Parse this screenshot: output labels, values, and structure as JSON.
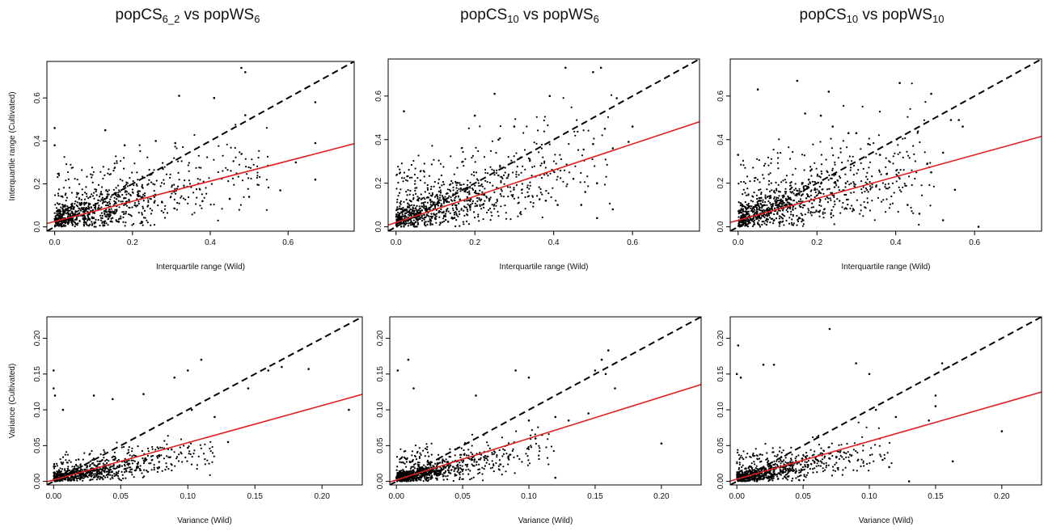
{
  "titles": [
    {
      "pre": "popCS",
      "sub": "6_2",
      "mid": " vs popWS",
      "sub2": "6"
    },
    {
      "pre": "popCS",
      "sub": "10",
      "mid": " vs popWS",
      "sub2": "6"
    },
    {
      "pre": "popCS",
      "sub": "10",
      "mid": " vs popWS",
      "sub2": "10"
    }
  ],
  "colors": {
    "points": "#000000",
    "regression": "#e02020",
    "identity": "#000000"
  },
  "chart_data": [
    {
      "type": "scatter",
      "title": "popCS6_2 vs popWS6",
      "xlabel": "Interquartile range (Wild)",
      "ylabel": "Interquartile range (Cultivated)",
      "xlim": [
        -0.02,
        0.77
      ],
      "ylim": [
        -0.02,
        0.77
      ],
      "xticks": [
        "0.0",
        "0.2",
        "0.4",
        "0.6"
      ],
      "yticks": [
        "0.0",
        "0.2",
        "0.4",
        "0.6"
      ],
      "identity_line": true,
      "regression": {
        "intercept": 0.025,
        "slope": 0.47
      },
      "cloud": {
        "seed": 11,
        "n": 900,
        "xmax": 0.55,
        "decay": 6,
        "spread": 0.09,
        "slope": 0.42,
        "intercept": 0.03
      },
      "points": [
        [
          0.0,
          0.46
        ],
        [
          0.0,
          0.38
        ],
        [
          0.48,
          0.74
        ],
        [
          0.49,
          0.72
        ],
        [
          0.32,
          0.61
        ],
        [
          0.41,
          0.6
        ],
        [
          0.67,
          0.58
        ],
        [
          0.49,
          0.52
        ],
        [
          0.58,
          0.17
        ],
        [
          0.62,
          0.3
        ],
        [
          0.67,
          0.39
        ],
        [
          0.67,
          0.22
        ],
        [
          0.13,
          0.45
        ],
        [
          0.18,
          0.38
        ],
        [
          0.26,
          0.4
        ],
        [
          0.31,
          0.39
        ],
        [
          0.5,
          0.14
        ],
        [
          0.45,
          0.13
        ],
        [
          0.38,
          0.12
        ]
      ]
    },
    {
      "type": "scatter",
      "title": "popCS10 vs popWS6",
      "xlabel": "Interquartile range (Wild)",
      "ylabel": "",
      "xlim": [
        -0.02,
        0.77
      ],
      "ylim": [
        -0.02,
        0.77
      ],
      "xticks": [
        "0.0",
        "0.2",
        "0.4",
        "0.6"
      ],
      "yticks": [
        "0.0",
        "0.2",
        "0.4",
        "0.6"
      ],
      "identity_line": true,
      "regression": {
        "intercept": 0.02,
        "slope": 0.6
      },
      "cloud": {
        "seed": 23,
        "n": 950,
        "xmax": 0.55,
        "decay": 6,
        "spread": 0.1,
        "slope": 0.55,
        "intercept": 0.03
      },
      "points": [
        [
          0.02,
          0.53
        ],
        [
          0.43,
          0.73
        ],
        [
          0.5,
          0.71
        ],
        [
          0.52,
          0.73
        ],
        [
          0.25,
          0.61
        ],
        [
          0.39,
          0.6
        ],
        [
          0.56,
          0.59
        ],
        [
          0.6,
          0.46
        ],
        [
          0.59,
          0.39
        ],
        [
          0.53,
          0.45
        ],
        [
          0.55,
          0.36
        ],
        [
          0.5,
          0.38
        ],
        [
          0.51,
          0.2
        ],
        [
          0.45,
          0.22
        ],
        [
          0.48,
          0.16
        ],
        [
          0.47,
          0.1
        ],
        [
          0.55,
          0.08
        ],
        [
          0.51,
          0.04
        ],
        [
          0.41,
          0.1
        ],
        [
          0.38,
          0.12
        ],
        [
          0.3,
          0.46
        ],
        [
          0.2,
          0.51
        ],
        [
          0.26,
          0.4
        ]
      ]
    },
    {
      "type": "scatter",
      "title": "popCS10 vs popWS10",
      "xlabel": "Interquartile range (Wild)",
      "ylabel": "",
      "xlim": [
        -0.02,
        0.77
      ],
      "ylim": [
        -0.02,
        0.77
      ],
      "xticks": [
        "0.0",
        "0.2",
        "0.4",
        "0.6"
      ],
      "yticks": [
        "0.0",
        "0.2",
        "0.4",
        "0.6"
      ],
      "identity_line": true,
      "regression": {
        "intercept": 0.03,
        "slope": 0.5
      },
      "cloud": {
        "seed": 37,
        "n": 950,
        "xmax": 0.5,
        "decay": 6,
        "spread": 0.1,
        "slope": 0.5,
        "intercept": 0.04
      },
      "points": [
        [
          0.0,
          0.33
        ],
        [
          0.05,
          0.63
        ],
        [
          0.15,
          0.67
        ],
        [
          0.23,
          0.62
        ],
        [
          0.41,
          0.66
        ],
        [
          0.49,
          0.61
        ],
        [
          0.21,
          0.51
        ],
        [
          0.28,
          0.43
        ],
        [
          0.3,
          0.43
        ],
        [
          0.33,
          0.38
        ],
        [
          0.36,
          0.33
        ],
        [
          0.54,
          0.49
        ],
        [
          0.56,
          0.49
        ],
        [
          0.57,
          0.46
        ],
        [
          0.52,
          0.34
        ],
        [
          0.48,
          0.29
        ],
        [
          0.49,
          0.25
        ],
        [
          0.55,
          0.17
        ],
        [
          0.61,
          0.0
        ],
        [
          0.52,
          0.03
        ],
        [
          0.46,
          0.06
        ],
        [
          0.43,
          0.1
        ],
        [
          0.17,
          0.52
        ],
        [
          0.24,
          0.46
        ]
      ]
    },
    {
      "type": "scatter",
      "title": "",
      "xlabel": "Variance (Wild)",
      "ylabel": "Variance (Cultivated)",
      "xlim": [
        -0.005,
        0.23
      ],
      "ylim": [
        -0.005,
        0.23
      ],
      "xticks": [
        "0.00",
        "0.05",
        "0.10",
        "0.15",
        "0.20"
      ],
      "yticks": [
        "0.00",
        "0.05",
        "0.10",
        "0.15",
        "0.20"
      ],
      "identity_line": true,
      "regression": {
        "intercept": 0.002,
        "slope": 0.52
      },
      "cloud": {
        "seed": 51,
        "n": 800,
        "xmax": 0.12,
        "decay": 30,
        "spread": 0.012,
        "slope": 0.3,
        "intercept": 0.004
      },
      "points": [
        [
          0.0,
          0.155
        ],
        [
          0.0,
          0.13
        ],
        [
          0.001,
          0.12
        ],
        [
          0.007,
          0.1
        ],
        [
          0.03,
          0.12
        ],
        [
          0.044,
          0.115
        ],
        [
          0.067,
          0.122
        ],
        [
          0.09,
          0.145
        ],
        [
          0.1,
          0.155
        ],
        [
          0.11,
          0.17
        ],
        [
          0.16,
          0.155
        ],
        [
          0.17,
          0.16
        ],
        [
          0.19,
          0.157
        ],
        [
          0.22,
          0.1
        ],
        [
          0.145,
          0.13
        ],
        [
          0.13,
          0.055
        ],
        [
          0.12,
          0.09
        ],
        [
          0.103,
          0.1
        ],
        [
          0.1,
          0.047
        ],
        [
          0.085,
          0.085
        ]
      ]
    },
    {
      "type": "scatter",
      "title": "",
      "xlabel": "Variance (Wild)",
      "ylabel": "",
      "xlim": [
        -0.005,
        0.23
      ],
      "ylim": [
        -0.005,
        0.23
      ],
      "xticks": [
        "0.00",
        "0.05",
        "0.10",
        "0.15",
        "0.20"
      ],
      "yticks": [
        "0.00",
        "0.05",
        "0.10",
        "0.15",
        "0.20"
      ],
      "identity_line": true,
      "regression": {
        "intercept": 0.002,
        "slope": 0.58
      },
      "cloud": {
        "seed": 67,
        "n": 850,
        "xmax": 0.12,
        "decay": 30,
        "spread": 0.013,
        "slope": 0.35,
        "intercept": 0.004
      },
      "points": [
        [
          0.001,
          0.155
        ],
        [
          0.009,
          0.17
        ],
        [
          0.013,
          0.13
        ],
        [
          0.06,
          0.12
        ],
        [
          0.09,
          0.155
        ],
        [
          0.1,
          0.145
        ],
        [
          0.155,
          0.17
        ],
        [
          0.16,
          0.183
        ],
        [
          0.158,
          0.15
        ],
        [
          0.15,
          0.155
        ],
        [
          0.165,
          0.13
        ],
        [
          0.2,
          0.053
        ],
        [
          0.145,
          0.095
        ],
        [
          0.13,
          0.085
        ],
        [
          0.12,
          0.09
        ],
        [
          0.11,
          0.065
        ],
        [
          0.105,
          0.06
        ],
        [
          0.12,
          0.005
        ],
        [
          0.1,
          0.085
        ]
      ]
    },
    {
      "type": "scatter",
      "title": "",
      "xlabel": "Variance (Wild)",
      "ylabel": "",
      "xlim": [
        -0.005,
        0.23
      ],
      "ylim": [
        -0.005,
        0.23
      ],
      "xticks": [
        "0.00",
        "0.05",
        "0.10",
        "0.15",
        "0.20"
      ],
      "yticks": [
        "0.00",
        "0.05",
        "0.10",
        "0.15",
        "0.20"
      ],
      "identity_line": true,
      "regression": {
        "intercept": 0.003,
        "slope": 0.53
      },
      "cloud": {
        "seed": 83,
        "n": 850,
        "xmax": 0.12,
        "decay": 30,
        "spread": 0.013,
        "slope": 0.35,
        "intercept": 0.004
      },
      "points": [
        [
          0.001,
          0.19
        ],
        [
          0.0,
          0.15
        ],
        [
          0.003,
          0.145
        ],
        [
          0.02,
          0.163
        ],
        [
          0.028,
          0.163
        ],
        [
          0.07,
          0.213
        ],
        [
          0.09,
          0.165
        ],
        [
          0.1,
          0.15
        ],
        [
          0.155,
          0.165
        ],
        [
          0.16,
          0.16
        ],
        [
          0.15,
          0.12
        ],
        [
          0.15,
          0.105
        ],
        [
          0.145,
          0.085
        ],
        [
          0.13,
          0.0
        ],
        [
          0.11,
          0.03
        ],
        [
          0.115,
          0.02
        ],
        [
          0.163,
          0.028
        ],
        [
          0.2,
          0.07
        ],
        [
          0.12,
          0.09
        ],
        [
          0.105,
          0.1
        ]
      ]
    }
  ]
}
